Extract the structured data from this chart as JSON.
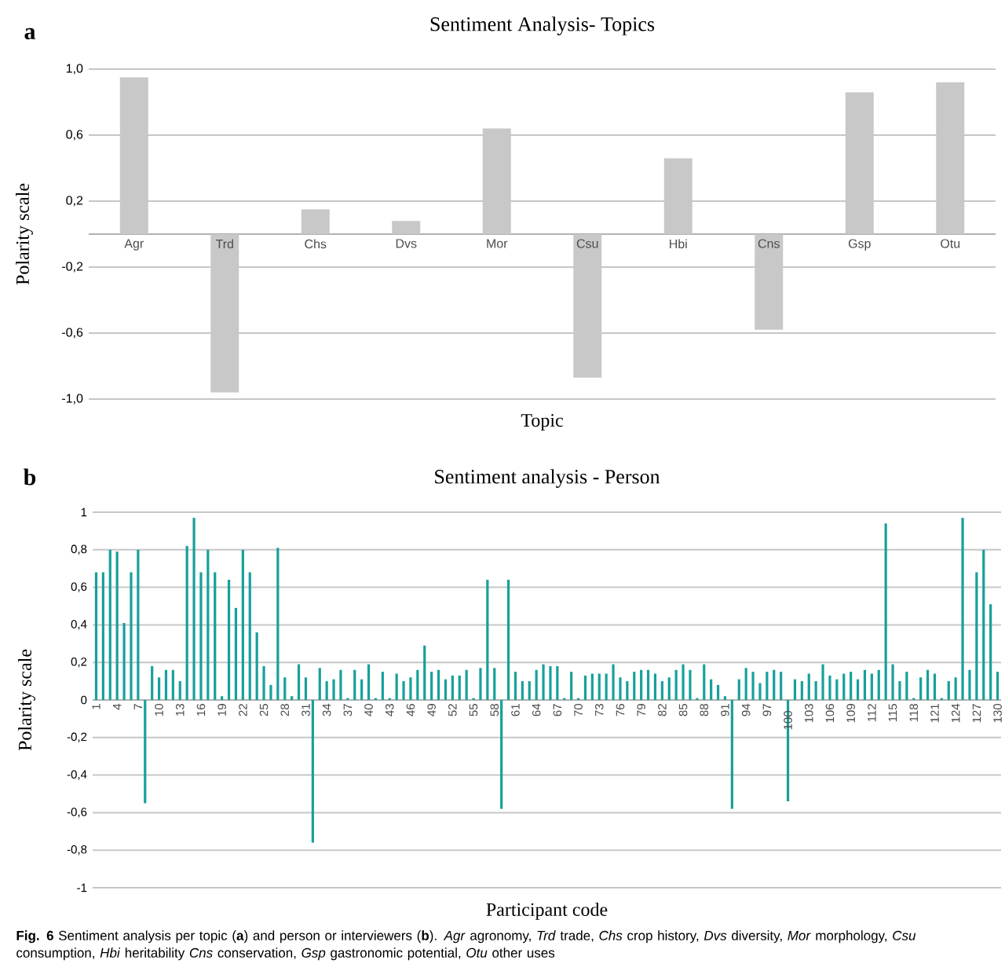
{
  "chart_data": [
    {
      "type": "bar",
      "title": "Sentiment Analysis- Topics",
      "xlabel": "Topic",
      "ylabel": "Polarity scale",
      "categories": [
        "Agr",
        "Trd",
        "Chs",
        "Dvs",
        "Mor",
        "Csu",
        "Hbi",
        "Cns",
        "Gsp",
        "Otu"
      ],
      "values": [
        0.95,
        -0.96,
        0.15,
        0.08,
        0.64,
        -0.87,
        0.46,
        -0.58,
        0.86,
        0.92
      ],
      "color": "#c8c8c8",
      "ylim": [
        -1,
        1
      ],
      "yticks": [
        {
          "value": -1,
          "label": "-1,0"
        },
        {
          "value": -0.6,
          "label": "-0,6"
        },
        {
          "value": -0.2,
          "label": "-0,2"
        },
        {
          "value": 0.2,
          "label": "0,2"
        },
        {
          "value": 0.6,
          "label": "0,6"
        },
        {
          "value": 1,
          "label": "1,0"
        }
      ],
      "grid": "y",
      "annotations": [
        "a"
      ]
    },
    {
      "type": "bar",
      "title": "Sentiment analysis - Person",
      "xlabel": "Participant code",
      "ylabel": "Polarity scale",
      "categories": [
        "1",
        null,
        null,
        "4",
        null,
        null,
        "7",
        null,
        null,
        "10",
        null,
        null,
        "13",
        null,
        null,
        "16",
        null,
        null,
        "19",
        null,
        null,
        "22",
        null,
        null,
        "25",
        null,
        null,
        "28",
        null,
        null,
        "31",
        null,
        null,
        "34",
        null,
        null,
        "37",
        null,
        null,
        "40",
        null,
        null,
        "43",
        null,
        null,
        "46",
        null,
        null,
        "49",
        null,
        null,
        "52",
        null,
        null,
        "55",
        null,
        null,
        "58",
        null,
        null,
        "61",
        null,
        null,
        "64",
        null,
        null,
        "67",
        null,
        null,
        "70",
        null,
        null,
        "73",
        null,
        null,
        "76",
        null,
        null,
        "79",
        null,
        null,
        "82",
        null,
        null,
        "85",
        null,
        null,
        "88",
        null,
        null,
        "91",
        null,
        null,
        "94",
        null,
        null,
        "97",
        null,
        null,
        "100",
        null,
        null,
        "103",
        null,
        null,
        "106",
        null,
        null,
        "109",
        null,
        null,
        "112",
        null,
        null,
        "115",
        null,
        null,
        "118",
        null,
        null,
        "121",
        null,
        null,
        "124",
        null,
        null,
        "127",
        null,
        null,
        "130"
      ],
      "values": [
        0.68,
        0.68,
        0.8,
        0.79,
        0.41,
        0.68,
        0.8,
        -0.55,
        0.18,
        0.12,
        0.16,
        0.16,
        0.1,
        0.82,
        0.97,
        0.68,
        0.8,
        0.68,
        0.02,
        0.64,
        0.49,
        0.8,
        0.68,
        0.36,
        0.18,
        0.08,
        0.81,
        0.12,
        0.02,
        0.19,
        0.12,
        -0.76,
        0.17,
        0.1,
        0.11,
        0.16,
        0.01,
        0.16,
        0.11,
        0.19,
        0.01,
        0.15,
        0.01,
        0.14,
        0.1,
        0.12,
        0.16,
        0.29,
        0.15,
        0.16,
        0.11,
        0.13,
        0.13,
        0.16,
        0.01,
        0.17,
        0.64,
        0.17,
        -0.58,
        0.64,
        0.15,
        0.1,
        0.1,
        0.16,
        0.19,
        0.18,
        0.18,
        0.01,
        0.15,
        0.01,
        0.13,
        0.14,
        0.14,
        0.14,
        0.19,
        0.12,
        0.1,
        0.15,
        0.16,
        0.16,
        0.14,
        0.1,
        0.12,
        0.16,
        0.19,
        0.16,
        0.01,
        0.19,
        0.11,
        0.08,
        0.02,
        -0.58,
        0.11,
        0.17,
        0.15,
        0.09,
        0.15,
        0.16,
        0.15,
        -0.54,
        0.11,
        0.1,
        0.14,
        0.1,
        0.19,
        0.13,
        0.11,
        0.14,
        0.15,
        0.11,
        0.16,
        0.14,
        0.16,
        0.94,
        0.19,
        0.1,
        0.15,
        0.01,
        0.12,
        0.16,
        0.14,
        0.01,
        0.1,
        0.12,
        0.97,
        0.16,
        0.68,
        0.8,
        0.51,
        0.15
      ],
      "color": "#17a09a",
      "ylim": [
        -1,
        1
      ],
      "yticks": [
        -1,
        {
          "value": -0.8,
          "label": "-0,8"
        },
        {
          "value": -0.6,
          "label": "-0,6"
        },
        {
          "value": -0.4,
          "label": "-0,4"
        },
        {
          "value": -0.2,
          "label": "-0,2"
        },
        0,
        {
          "value": 0.2,
          "label": "0,2"
        },
        {
          "value": 0.4,
          "label": "0,4"
        },
        {
          "value": 0.6,
          "label": "0,6"
        },
        {
          "value": 0.8,
          "label": "0,8"
        },
        1
      ],
      "grid": "y",
      "annotations": [
        "b",
        "**Fig. 6** Sentiment analysis per topic (**a**) and person or interviewers (**b**). *Agr* agronomy, *Trd* trade, *Chs* crop history, *Dvs* diversity, *Mor* morphology, *Csu* consumption, *Hbi* heritability *Cns* conservation, *Gsp* gastronomic potential, *Otu* other uses"
      ]
    }
  ]
}
